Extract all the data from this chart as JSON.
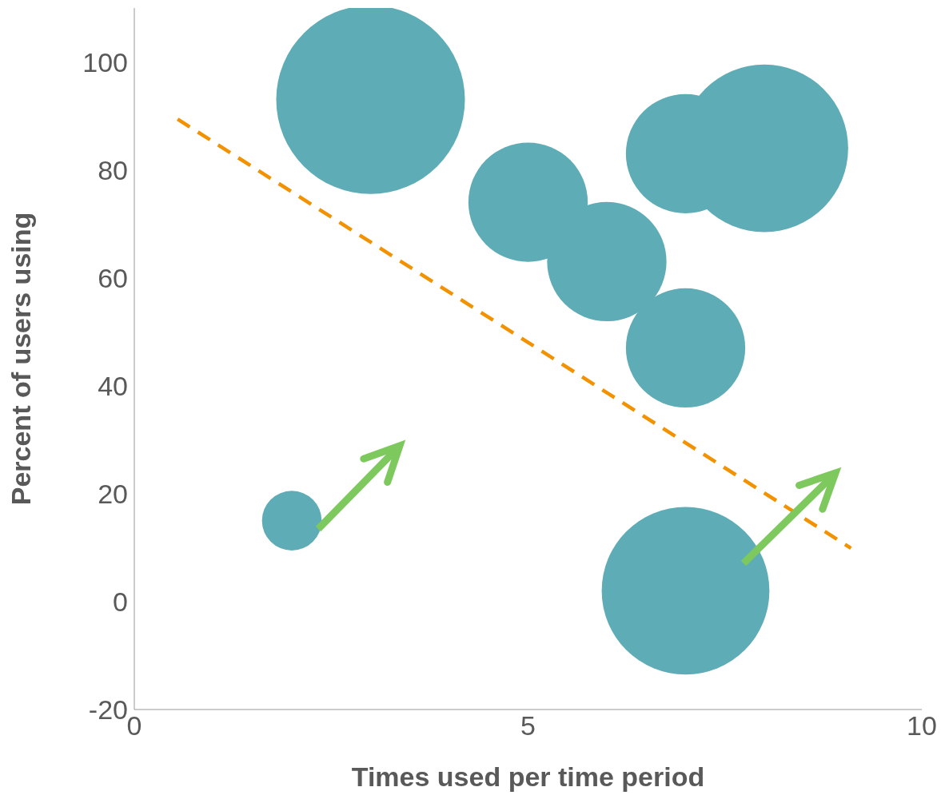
{
  "chart_data": {
    "type": "bubble",
    "xlabel": "Times used per time period",
    "ylabel": "Percent of users using",
    "xlim": [
      0,
      10
    ],
    "xticks": [
      0,
      5,
      10
    ],
    "ylim": [
      -20,
      110
    ],
    "yticks": [
      -20,
      0,
      20,
      40,
      60,
      80,
      100
    ],
    "series": [
      {
        "color": "#5eacb6",
        "x": [
          3,
          5,
          6,
          7,
          8,
          7,
          2,
          7
        ],
        "values": [
          93,
          74,
          63,
          83,
          84,
          47,
          15,
          2
        ],
        "sizes": [
          1,
          0.4,
          0.4,
          0.4,
          0.79,
          0.4,
          0.1,
          0.79
        ]
      },
      {
        "type": "line",
        "color": "#f39200",
        "line_style": "dashed",
        "marker": "none",
        "x": [
          0.55,
          9.1
        ],
        "values": [
          89.4,
          9.9
        ]
      }
    ]
  }
}
